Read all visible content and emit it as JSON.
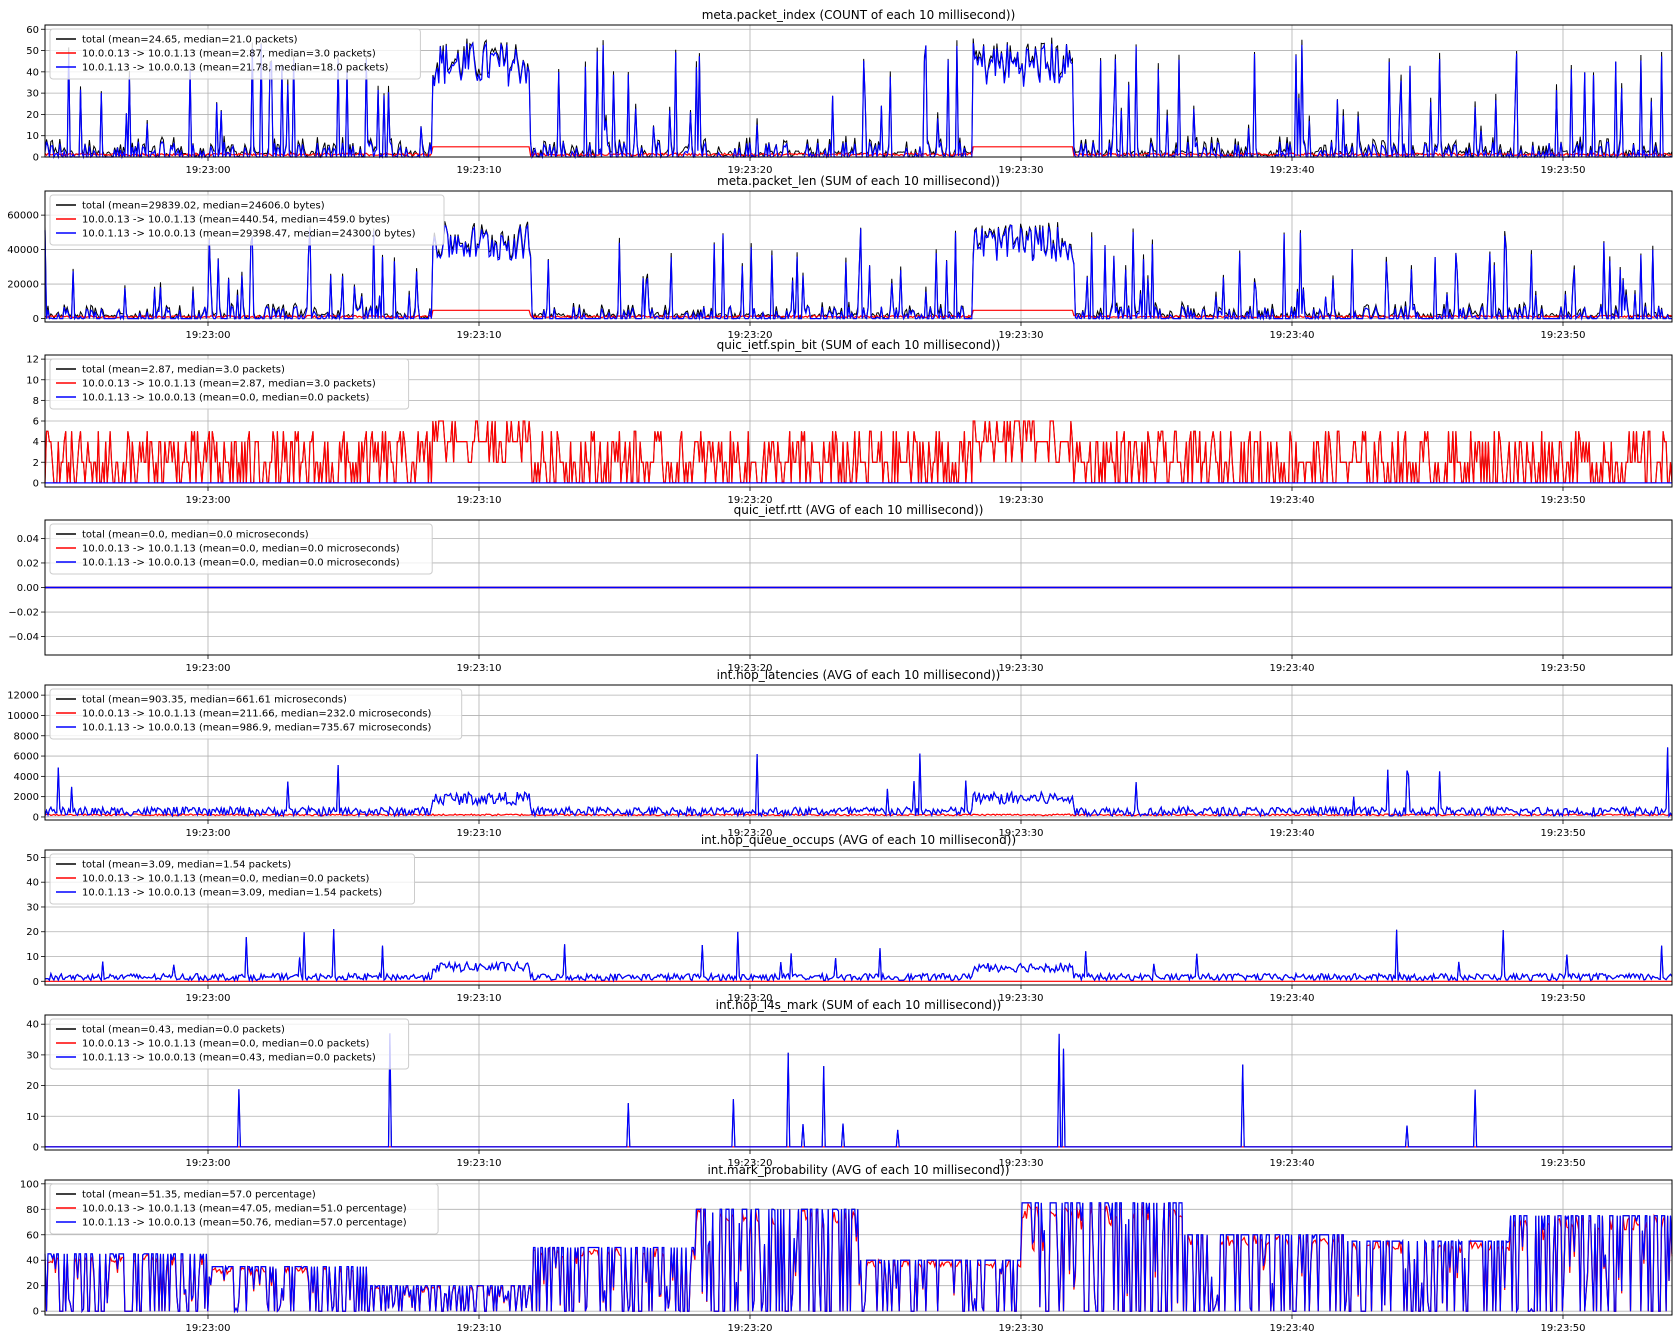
{
  "chart_data": [
    {
      "type": "line",
      "title": "meta.packet_index (COUNT of each 10 millisecond))",
      "x_tick_labels": [
        "19:23:00",
        "19:23:10",
        "19:23:20",
        "19:23:30",
        "19:23:40",
        "19:23:50"
      ],
      "x_range": [
        "19:22:54",
        "19:23:54"
      ],
      "ylim": [
        0,
        62
      ],
      "yticks": [
        0,
        10,
        20,
        30,
        40,
        50,
        60
      ],
      "grid": true,
      "legend_position": "upper-left",
      "series": [
        {
          "name": "total (mean=24.65, median=21.0 packets)",
          "color": "#000000",
          "mean": 24.65,
          "median": 21.0
        },
        {
          "name": "10.0.0.13 -> 10.0.1.13 (mean=2.87, median=3.0 packets)",
          "color": "#ff0000",
          "mean": 2.87,
          "median": 3.0
        },
        {
          "name": "10.0.1.13 -> 10.0.0.13 (mean=21.78, median=18.0 packets)",
          "color": "#0000ff",
          "mean": 21.78,
          "median": 18.0
        }
      ]
    },
    {
      "type": "line",
      "title": "meta.packet_len (SUM of each 10 millisecond))",
      "x_tick_labels": [
        "19:23:00",
        "19:23:10",
        "19:23:20",
        "19:23:30",
        "19:23:40",
        "19:23:50"
      ],
      "x_range": [
        "19:22:54",
        "19:23:54"
      ],
      "ylim": [
        -2000,
        74000
      ],
      "yticks": [
        0,
        20000,
        40000,
        60000
      ],
      "grid": true,
      "legend_position": "upper-left",
      "series": [
        {
          "name": "total (mean=29839.02, median=24606.0 bytes)",
          "color": "#000000",
          "mean": 29839.02,
          "median": 24606.0
        },
        {
          "name": "10.0.0.13 -> 10.0.1.13 (mean=440.54, median=459.0 bytes)",
          "color": "#ff0000",
          "mean": 440.54,
          "median": 459.0
        },
        {
          "name": "10.0.1.13 -> 10.0.0.13 (mean=29398.47, median=24300.0 bytes)",
          "color": "#0000ff",
          "mean": 29398.47,
          "median": 24300.0
        }
      ]
    },
    {
      "type": "line",
      "title": "quic_ietf.spin_bit (SUM of each 10 millisecond))",
      "x_tick_labels": [
        "19:23:00",
        "19:23:10",
        "19:23:20",
        "19:23:30",
        "19:23:40",
        "19:23:50"
      ],
      "x_range": [
        "19:22:54",
        "19:23:54"
      ],
      "ylim": [
        -0.4,
        12.4
      ],
      "yticks": [
        0,
        2,
        4,
        6,
        8,
        10,
        12
      ],
      "grid": true,
      "legend_position": "upper-left",
      "series": [
        {
          "name": "total (mean=2.87, median=3.0 packets)",
          "color": "#000000",
          "mean": 2.87,
          "median": 3.0
        },
        {
          "name": "10.0.0.13 -> 10.0.1.13 (mean=2.87, median=3.0 packets)",
          "color": "#ff0000",
          "mean": 2.87,
          "median": 3.0
        },
        {
          "name": "10.0.1.13 -> 10.0.0.13 (mean=0.0, median=0.0 packets)",
          "color": "#0000ff",
          "mean": 0.0,
          "median": 0.0
        }
      ]
    },
    {
      "type": "line",
      "title": "quic_ietf.rtt (AVG of each 10 millisecond))",
      "x_tick_labels": [
        "19:23:00",
        "19:23:10",
        "19:23:20",
        "19:23:30",
        "19:23:40",
        "19:23:50"
      ],
      "x_range": [
        "19:22:54",
        "19:23:54"
      ],
      "ylim": [
        -0.055,
        0.055
      ],
      "yticks": [
        -0.04,
        -0.02,
        0.0,
        0.02,
        0.04
      ],
      "ytick_labels": [
        "−0.04",
        "−0.02",
        "0.00",
        "0.02",
        "0.04"
      ],
      "grid": true,
      "legend_position": "upper-left",
      "series": [
        {
          "name": "total (mean=0.0, median=0.0 microseconds)",
          "color": "#000000",
          "mean": 0.0,
          "median": 0.0
        },
        {
          "name": "10.0.0.13 -> 10.0.1.13 (mean=0.0, median=0.0 microseconds)",
          "color": "#ff0000",
          "mean": 0.0,
          "median": 0.0
        },
        {
          "name": "10.0.1.13 -> 10.0.0.13 (mean=0.0, median=0.0 microseconds)",
          "color": "#0000ff",
          "mean": 0.0,
          "median": 0.0
        }
      ]
    },
    {
      "type": "line",
      "title": "int.hop_latencies (AVG of each 10 millisecond))",
      "x_tick_labels": [
        "19:23:00",
        "19:23:10",
        "19:23:20",
        "19:23:30",
        "19:23:40",
        "19:23:50"
      ],
      "x_range": [
        "19:22:54",
        "19:23:54"
      ],
      "ylim": [
        -300,
        13000
      ],
      "yticks": [
        0,
        2000,
        4000,
        6000,
        8000,
        10000,
        12000
      ],
      "grid": true,
      "legend_position": "upper-left",
      "series": [
        {
          "name": "total (mean=903.35, median=661.61 microseconds)",
          "color": "#000000",
          "mean": 903.35,
          "median": 661.61
        },
        {
          "name": "10.0.0.13 -> 10.0.1.13 (mean=211.66, median=232.0 microseconds)",
          "color": "#ff0000",
          "mean": 211.66,
          "median": 232.0
        },
        {
          "name": "10.0.1.13 -> 10.0.0.13 (mean=986.9, median=735.67 microseconds)",
          "color": "#0000ff",
          "mean": 986.9,
          "median": 735.67
        }
      ]
    },
    {
      "type": "line",
      "title": "int.hop_queue_occups (AVG of each 10 millisecond))",
      "x_tick_labels": [
        "19:23:00",
        "19:23:10",
        "19:23:20",
        "19:23:30",
        "19:23:40",
        "19:23:50"
      ],
      "x_range": [
        "19:22:54",
        "19:23:54"
      ],
      "ylim": [
        -1.5,
        53
      ],
      "yticks": [
        0,
        10,
        20,
        30,
        40,
        50
      ],
      "grid": true,
      "legend_position": "upper-left",
      "series": [
        {
          "name": "total (mean=3.09, median=1.54 packets)",
          "color": "#000000",
          "mean": 3.09,
          "median": 1.54
        },
        {
          "name": "10.0.0.13 -> 10.0.1.13 (mean=0.0, median=0.0 packets)",
          "color": "#ff0000",
          "mean": 0.0,
          "median": 0.0
        },
        {
          "name": "10.0.1.13 -> 10.0.0.13 (mean=3.09, median=1.54 packets)",
          "color": "#0000ff",
          "mean": 3.09,
          "median": 1.54
        }
      ]
    },
    {
      "type": "line",
      "title": "int.hop_l4s_mark (SUM of each 10 millisecond))",
      "x_tick_labels": [
        "19:23:00",
        "19:23:10",
        "19:23:20",
        "19:23:30",
        "19:23:40",
        "19:23:50"
      ],
      "x_range": [
        "19:22:54",
        "19:23:54"
      ],
      "ylim": [
        -1,
        43
      ],
      "yticks": [
        0,
        10,
        20,
        30,
        40
      ],
      "grid": true,
      "legend_position": "upper-left",
      "series": [
        {
          "name": "total (mean=0.43, median=0.0 packets)",
          "color": "#000000",
          "mean": 0.43,
          "median": 0.0
        },
        {
          "name": "10.0.0.13 -> 10.0.1.13 (mean=0.0, median=0.0 packets)",
          "color": "#ff0000",
          "mean": 0.0,
          "median": 0.0
        },
        {
          "name": "10.0.1.13 -> 10.0.0.13 (mean=0.43, median=0.0 packets)",
          "color": "#0000ff",
          "mean": 0.43,
          "median": 0.0
        }
      ]
    },
    {
      "type": "line",
      "title": "int.mark_probability (AVG of each 10 millisecond))",
      "x_tick_labels": [
        "19:23:00",
        "19:23:10",
        "19:23:20",
        "19:23:30",
        "19:23:40",
        "19:23:50"
      ],
      "x_range": [
        "19:22:54",
        "19:23:54"
      ],
      "ylim": [
        -3,
        103
      ],
      "yticks": [
        0,
        20,
        40,
        60,
        80,
        100
      ],
      "grid": true,
      "legend_position": "upper-left",
      "series": [
        {
          "name": "total (mean=51.35, median=57.0 percentage)",
          "color": "#000000",
          "mean": 51.35,
          "median": 57.0
        },
        {
          "name": "10.0.0.13 -> 10.0.1.13 (mean=47.05, median=51.0 percentage)",
          "color": "#ff0000",
          "mean": 47.05,
          "median": 51.0
        },
        {
          "name": "10.0.1.13 -> 10.0.0.13 (mean=50.76, median=57.0 percentage)",
          "color": "#0000ff",
          "mean": 50.76,
          "median": 57.0
        }
      ]
    }
  ]
}
